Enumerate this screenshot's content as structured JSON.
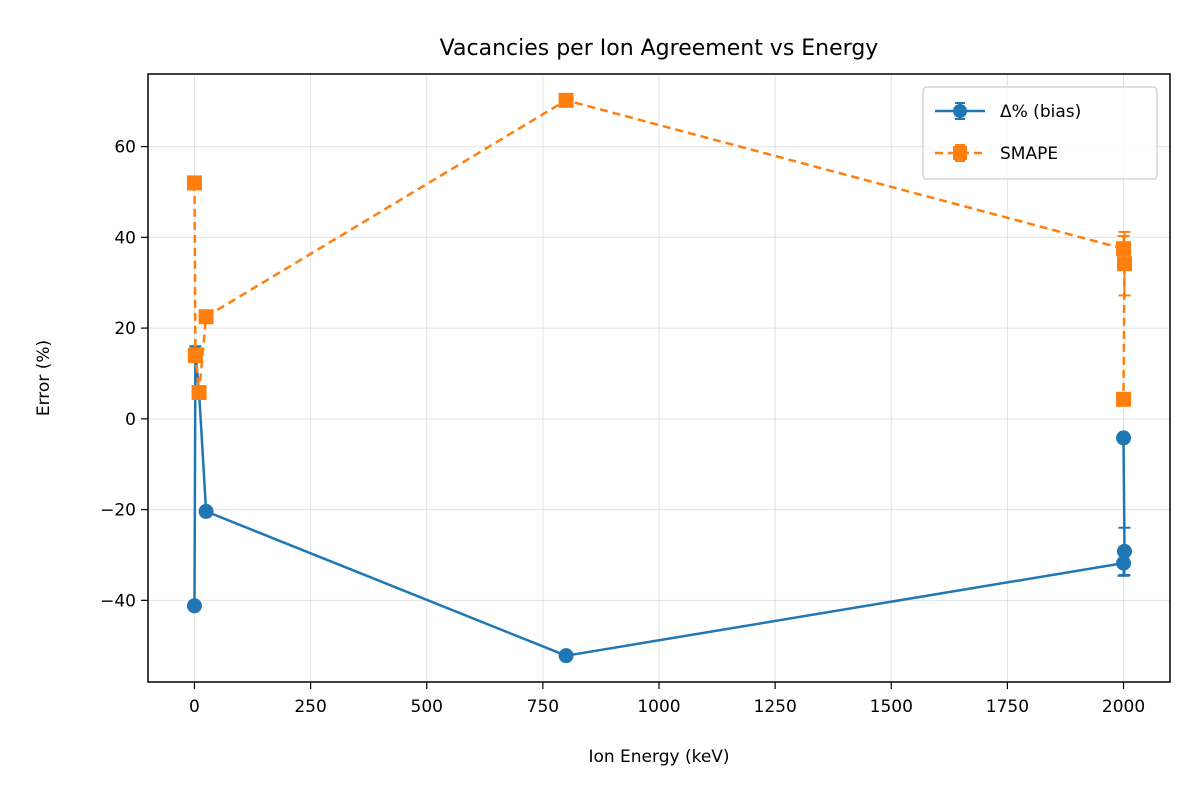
{
  "chart_data": {
    "type": "line",
    "title": "Vacancies per Ion Agreement vs Energy",
    "xlabel": "Ion Energy (keV)",
    "ylabel": "Error (%)",
    "xlim": [
      -100,
      2100
    ],
    "ylim": [
      -58,
      76
    ],
    "xticks": [
      0,
      250,
      500,
      750,
      1000,
      1250,
      1500,
      1750,
      2000
    ],
    "yticks": [
      -40,
      -20,
      0,
      20,
      40,
      60
    ],
    "grid": true,
    "legend_position": "upper right",
    "series": [
      {
        "name": "Δ% (bias)",
        "color": "#1f77b4",
        "line_style": "solid",
        "marker": "circle",
        "points": [
          {
            "x": 0,
            "y": -41.2
          },
          {
            "x": 2,
            "y": 14.5,
            "err": 1.5
          },
          {
            "x": 10,
            "y": 5.8
          },
          {
            "x": 25,
            "y": -20.4
          },
          {
            "x": 800,
            "y": -52.2
          },
          {
            "x": 2000,
            "y": -31.8,
            "err": 2.8
          },
          {
            "x": 2002,
            "y": -29.2,
            "err": 5.2
          },
          {
            "x": 2000,
            "y": -4.2
          }
        ]
      },
      {
        "name": "SMAPE",
        "color": "#ff7f0e",
        "line_style": "dashed",
        "marker": "square",
        "points": [
          {
            "x": 0,
            "y": 52.0
          },
          {
            "x": 2,
            "y": 14.0,
            "err": 1.5
          },
          {
            "x": 10,
            "y": 5.8
          },
          {
            "x": 25,
            "y": 22.5
          },
          {
            "x": 800,
            "y": 70.2
          },
          {
            "x": 2000,
            "y": 37.5,
            "err": 2.8
          },
          {
            "x": 2002,
            "y": 34.2,
            "err": 7.0
          },
          {
            "x": 2000,
            "y": 4.3
          }
        ]
      }
    ]
  }
}
